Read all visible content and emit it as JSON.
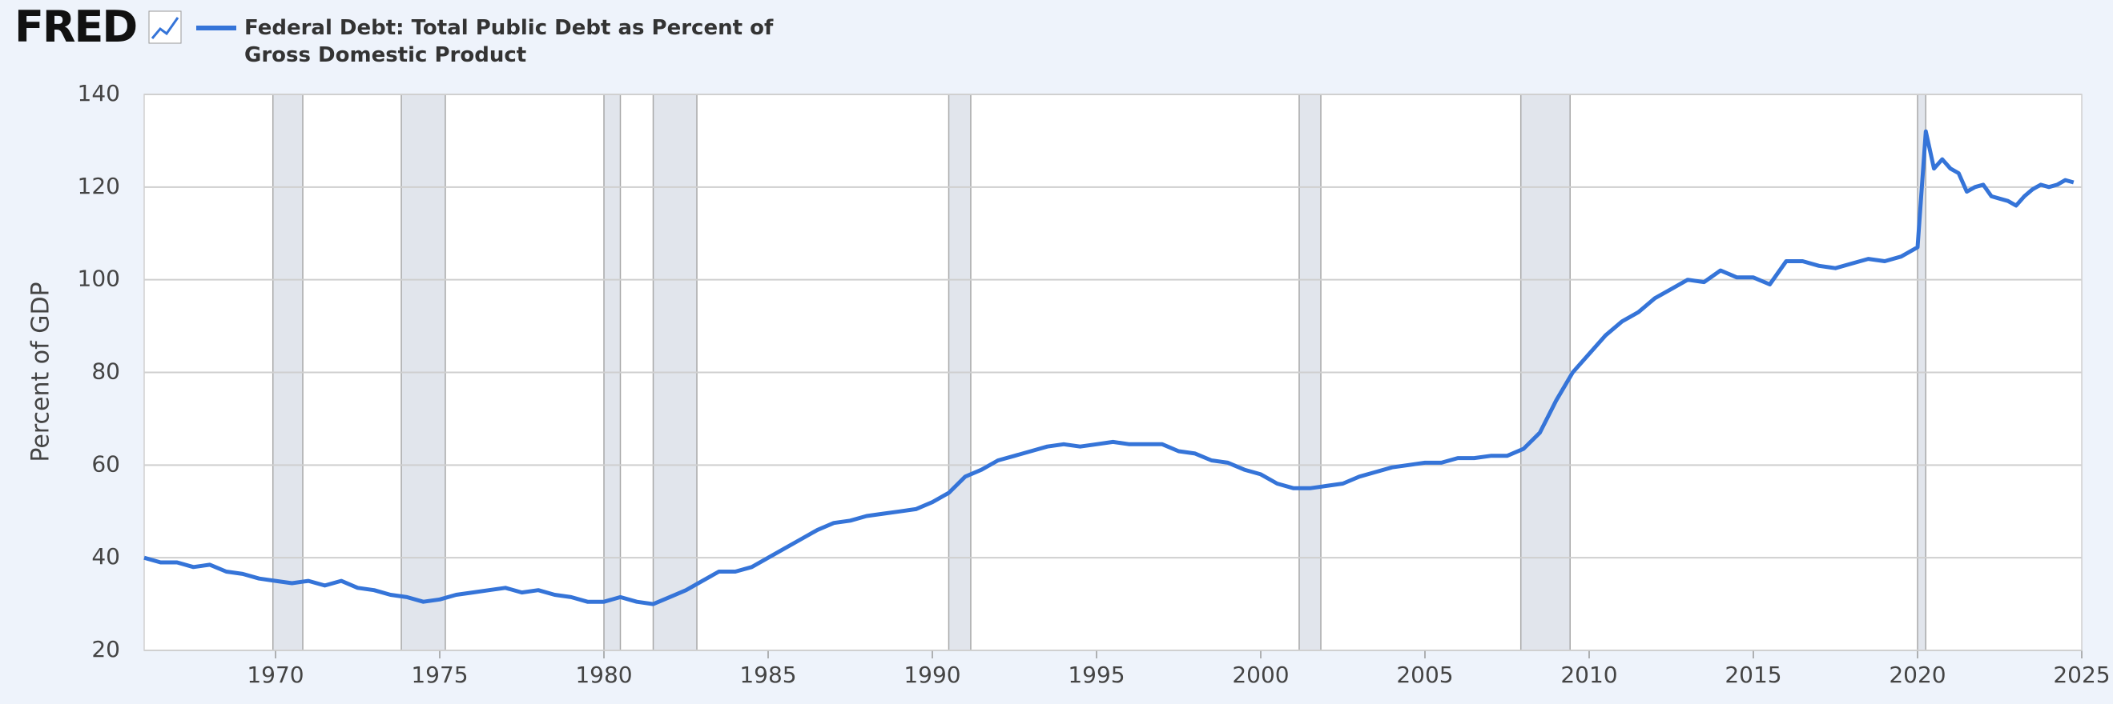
{
  "logo": "FRED",
  "chart_data": {
    "type": "line",
    "ylabel": "Percent of GDP",
    "series": [
      {
        "name": "Federal Debt: Total Public Debt as Percent of Gross Domestic Product",
        "color": "#3574d8",
        "x": [
          1966.0,
          1966.5,
          1967.0,
          1967.5,
          1968.0,
          1968.5,
          1969.0,
          1969.5,
          1970.0,
          1970.5,
          1971.0,
          1971.5,
          1972.0,
          1972.5,
          1973.0,
          1973.5,
          1974.0,
          1974.5,
          1975.0,
          1975.5,
          1976.0,
          1976.5,
          1977.0,
          1977.5,
          1978.0,
          1978.5,
          1979.0,
          1979.5,
          1980.0,
          1980.5,
          1981.0,
          1981.5,
          1982.0,
          1982.5,
          1983.0,
          1983.5,
          1984.0,
          1984.5,
          1985.0,
          1985.5,
          1986.0,
          1986.5,
          1987.0,
          1987.5,
          1988.0,
          1988.5,
          1989.0,
          1989.5,
          1990.0,
          1990.5,
          1991.0,
          1991.5,
          1992.0,
          1992.5,
          1993.0,
          1993.5,
          1994.0,
          1994.5,
          1995.0,
          1995.5,
          1996.0,
          1996.5,
          1997.0,
          1997.5,
          1998.0,
          1998.5,
          1999.0,
          1999.5,
          2000.0,
          2000.5,
          2001.0,
          2001.5,
          2002.0,
          2002.5,
          2003.0,
          2003.5,
          2004.0,
          2004.5,
          2005.0,
          2005.5,
          2006.0,
          2006.5,
          2007.0,
          2007.5,
          2008.0,
          2008.5,
          2009.0,
          2009.5,
          2010.0,
          2010.5,
          2011.0,
          2011.5,
          2012.0,
          2012.5,
          2013.0,
          2013.5,
          2014.0,
          2014.5,
          2015.0,
          2015.5,
          2016.0,
          2016.5,
          2017.0,
          2017.5,
          2018.0,
          2018.5,
          2019.0,
          2019.5,
          2020.0,
          2020.25,
          2020.5,
          2020.75,
          2021.0,
          2021.25,
          2021.5,
          2021.75,
          2022.0,
          2022.25,
          2022.5,
          2022.75,
          2023.0,
          2023.25,
          2023.5,
          2023.75,
          2024.0,
          2024.25,
          2024.5,
          2024.75
        ],
        "values": [
          40,
          39,
          39,
          38,
          38.5,
          37,
          36.5,
          35.5,
          35,
          34.5,
          35,
          34,
          35,
          33.5,
          33,
          32,
          31.5,
          30.5,
          31,
          32,
          32.5,
          33,
          33.5,
          32.5,
          33,
          32,
          31.5,
          30.5,
          30.5,
          31.5,
          30.5,
          30,
          31.5,
          33,
          35,
          37,
          37,
          38,
          40,
          42,
          44,
          46,
          47.5,
          48,
          49,
          49.5,
          50,
          50.5,
          52,
          54,
          57.5,
          59,
          61,
          62,
          63,
          64,
          64.5,
          64,
          64.5,
          65,
          64.5,
          64.5,
          64.5,
          63,
          62.5,
          61,
          60.5,
          59,
          58,
          56,
          55,
          55,
          55.5,
          56,
          57.5,
          58.5,
          59.5,
          60,
          60.5,
          60.5,
          61.5,
          61.5,
          62,
          62,
          63.5,
          67,
          74,
          80,
          84,
          88,
          91,
          93,
          96,
          98,
          100,
          99.5,
          102,
          100.5,
          100.5,
          99,
          104,
          104,
          103,
          102.5,
          103.5,
          104.5,
          104,
          105,
          107,
          132,
          124,
          126,
          124,
          123,
          119,
          120,
          120.5,
          118,
          117.5,
          117,
          116,
          118,
          119.5,
          120.5,
          120,
          120.5,
          121.5,
          121
        ]
      }
    ],
    "recessions": [
      [
        1969.92,
        1970.83
      ],
      [
        1973.83,
        1975.17
      ],
      [
        1980.0,
        1980.5
      ],
      [
        1981.5,
        1982.83
      ],
      [
        1990.5,
        1991.17
      ],
      [
        2001.17,
        2001.83
      ],
      [
        2007.92,
        2009.42
      ],
      [
        2020.0,
        2020.25
      ]
    ],
    "xlim": [
      1966,
      2025
    ],
    "xticks": [
      1970,
      1975,
      1980,
      1985,
      1990,
      1995,
      2000,
      2005,
      2010,
      2015,
      2020,
      2025
    ],
    "ylim": [
      20,
      140
    ],
    "yticks": [
      20,
      40,
      60,
      80,
      100,
      120,
      140
    ],
    "grid": true
  }
}
